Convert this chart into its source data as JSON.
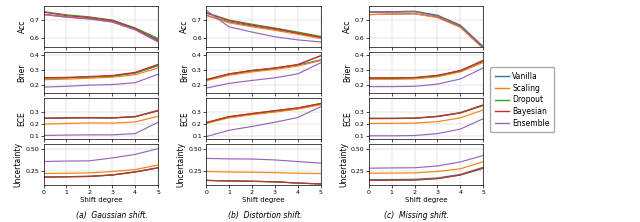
{
  "methods": [
    "Vanilla",
    "Scaling",
    "Dropout",
    "Bayesian",
    "Ensemble"
  ],
  "colors": [
    "#1f77b4",
    "#ff7f0e",
    "#2ca02c",
    "#d62728",
    "#9467bd"
  ],
  "x": [
    0,
    1,
    2,
    3,
    4,
    5
  ],
  "column_titles": [
    "(a)  Gaussian shift.",
    "(b)  Distortion shift.",
    "(c)  Missing shift."
  ],
  "row_labels": [
    "Acc",
    "Brier",
    "ECE",
    "Uncertainty"
  ],
  "scenarios": [
    "gaussian",
    "distortion",
    "missing"
  ],
  "metric_keys": [
    "acc",
    "brier",
    "ece",
    "uncertainty"
  ],
  "ylims": {
    "acc": [
      0.545,
      0.785
    ],
    "brier": [
      0.14,
      0.425
    ],
    "ece": [
      0.07,
      0.42
    ],
    "uncertainty": [
      0.09,
      0.56
    ]
  },
  "yticks": {
    "acc": [
      0.6,
      0.7
    ],
    "brier": [
      0.2,
      0.3,
      0.4
    ],
    "ece": [
      0.1,
      0.2,
      0.3
    ],
    "uncertainty": [
      0.25,
      0.5
    ]
  },
  "gaussian": {
    "acc": {
      "Vanilla": [
        0.735,
        0.72,
        0.71,
        0.695,
        0.65,
        0.59
      ],
      "Scaling": [
        0.733,
        0.718,
        0.707,
        0.69,
        0.646,
        0.578
      ],
      "Dropout": [
        0.75,
        0.732,
        0.72,
        0.702,
        0.657,
        0.597
      ],
      "Bayesian": [
        0.747,
        0.727,
        0.716,
        0.699,
        0.653,
        0.584
      ],
      "Ensemble": [
        0.734,
        0.719,
        0.709,
        0.691,
        0.646,
        0.576
      ]
    },
    "brier": {
      "Vanilla": [
        0.245,
        0.246,
        0.252,
        0.258,
        0.278,
        0.328
      ],
      "Scaling": [
        0.233,
        0.237,
        0.243,
        0.25,
        0.267,
        0.313
      ],
      "Dropout": [
        0.244,
        0.246,
        0.252,
        0.258,
        0.279,
        0.332
      ],
      "Bayesian": [
        0.247,
        0.249,
        0.255,
        0.262,
        0.283,
        0.338
      ],
      "Ensemble": [
        0.183,
        0.188,
        0.196,
        0.2,
        0.213,
        0.27
      ]
    },
    "ece": {
      "Vanilla": [
        0.245,
        0.248,
        0.25,
        0.248,
        0.258,
        0.31
      ],
      "Scaling": [
        0.198,
        0.203,
        0.208,
        0.206,
        0.216,
        0.263
      ],
      "Dropout": [
        0.247,
        0.25,
        0.252,
        0.25,
        0.262,
        0.313
      ],
      "Bayesian": [
        0.247,
        0.25,
        0.252,
        0.25,
        0.26,
        0.309
      ],
      "Ensemble": [
        0.103,
        0.106,
        0.108,
        0.108,
        0.118,
        0.213
      ]
    },
    "uncertainty": {
      "Vanilla": [
        0.183,
        0.188,
        0.193,
        0.208,
        0.243,
        0.288
      ],
      "Scaling": [
        0.223,
        0.226,
        0.23,
        0.246,
        0.268,
        0.318
      ],
      "Dropout": [
        0.183,
        0.186,
        0.19,
        0.206,
        0.24,
        0.286
      ],
      "Bayesian": [
        0.183,
        0.186,
        0.19,
        0.206,
        0.24,
        0.288
      ],
      "Ensemble": [
        0.358,
        0.363,
        0.366,
        0.398,
        0.438,
        0.503
      ]
    }
  },
  "distortion": {
    "acc": {
      "Vanilla": [
        0.73,
        0.69,
        0.668,
        0.648,
        0.625,
        0.6
      ],
      "Scaling": [
        0.728,
        0.686,
        0.663,
        0.643,
        0.62,
        0.596
      ],
      "Dropout": [
        0.745,
        0.702,
        0.678,
        0.656,
        0.633,
        0.608
      ],
      "Bayesian": [
        0.742,
        0.698,
        0.673,
        0.653,
        0.628,
        0.603
      ],
      "Ensemble": [
        0.758,
        0.663,
        0.633,
        0.606,
        0.588,
        0.576
      ]
    },
    "brier": {
      "Vanilla": [
        0.233,
        0.27,
        0.293,
        0.31,
        0.333,
        0.368
      ],
      "Scaling": [
        0.226,
        0.263,
        0.286,
        0.303,
        0.326,
        0.363
      ],
      "Dropout": [
        0.233,
        0.273,
        0.296,
        0.313,
        0.336,
        0.396
      ],
      "Bayesian": [
        0.233,
        0.273,
        0.296,
        0.313,
        0.336,
        0.396
      ],
      "Ensemble": [
        0.176,
        0.208,
        0.228,
        0.246,
        0.273,
        0.348
      ]
    },
    "ece": {
      "Vanilla": [
        0.208,
        0.256,
        0.283,
        0.306,
        0.328,
        0.366
      ],
      "Scaling": [
        0.203,
        0.25,
        0.276,
        0.298,
        0.323,
        0.36
      ],
      "Dropout": [
        0.21,
        0.26,
        0.286,
        0.31,
        0.333,
        0.37
      ],
      "Bayesian": [
        0.21,
        0.26,
        0.286,
        0.31,
        0.333,
        0.37
      ],
      "Ensemble": [
        0.093,
        0.146,
        0.178,
        0.213,
        0.253,
        0.343
      ]
    },
    "uncertainty": {
      "Vanilla": [
        0.146,
        0.14,
        0.136,
        0.13,
        0.116,
        0.106
      ],
      "Scaling": [
        0.246,
        0.24,
        0.238,
        0.233,
        0.226,
        0.223
      ],
      "Dropout": [
        0.146,
        0.14,
        0.136,
        0.13,
        0.116,
        0.106
      ],
      "Bayesian": [
        0.146,
        0.14,
        0.136,
        0.13,
        0.116,
        0.106
      ],
      "Ensemble": [
        0.393,
        0.388,
        0.386,
        0.376,
        0.358,
        0.34
      ]
    }
  },
  "missing": {
    "acc": {
      "Vanilla": [
        0.733,
        0.736,
        0.738,
        0.718,
        0.663,
        0.543
      ],
      "Scaling": [
        0.733,
        0.736,
        0.738,
        0.716,
        0.66,
        0.538
      ],
      "Dropout": [
        0.748,
        0.75,
        0.753,
        0.73,
        0.673,
        0.55
      ],
      "Bayesian": [
        0.746,
        0.748,
        0.75,
        0.726,
        0.668,
        0.546
      ],
      "Ensemble": [
        0.746,
        0.748,
        0.75,
        0.724,
        0.666,
        0.543
      ]
    },
    "brier": {
      "Vanilla": [
        0.243,
        0.243,
        0.246,
        0.26,
        0.293,
        0.358
      ],
      "Scaling": [
        0.236,
        0.236,
        0.238,
        0.253,
        0.286,
        0.35
      ],
      "Dropout": [
        0.243,
        0.243,
        0.246,
        0.26,
        0.293,
        0.366
      ],
      "Bayesian": [
        0.246,
        0.246,
        0.248,
        0.263,
        0.296,
        0.363
      ],
      "Ensemble": [
        0.186,
        0.186,
        0.188,
        0.203,
        0.238,
        0.313
      ]
    },
    "ece": {
      "Vanilla": [
        0.243,
        0.244,
        0.246,
        0.26,
        0.29,
        0.353
      ],
      "Scaling": [
        0.203,
        0.204,
        0.206,
        0.218,
        0.25,
        0.316
      ],
      "Dropout": [
        0.246,
        0.246,
        0.248,
        0.263,
        0.293,
        0.358
      ],
      "Bayesian": [
        0.246,
        0.246,
        0.248,
        0.263,
        0.293,
        0.358
      ],
      "Ensemble": [
        0.1,
        0.1,
        0.102,
        0.118,
        0.156,
        0.243
      ]
    },
    "uncertainty": {
      "Vanilla": [
        0.153,
        0.156,
        0.158,
        0.173,
        0.213,
        0.293
      ],
      "Scaling": [
        0.226,
        0.228,
        0.23,
        0.246,
        0.276,
        0.356
      ],
      "Dropout": [
        0.146,
        0.148,
        0.15,
        0.166,
        0.206,
        0.283
      ],
      "Bayesian": [
        0.146,
        0.148,
        0.15,
        0.166,
        0.206,
        0.283
      ],
      "Ensemble": [
        0.283,
        0.286,
        0.288,
        0.308,
        0.353,
        0.426
      ]
    }
  }
}
